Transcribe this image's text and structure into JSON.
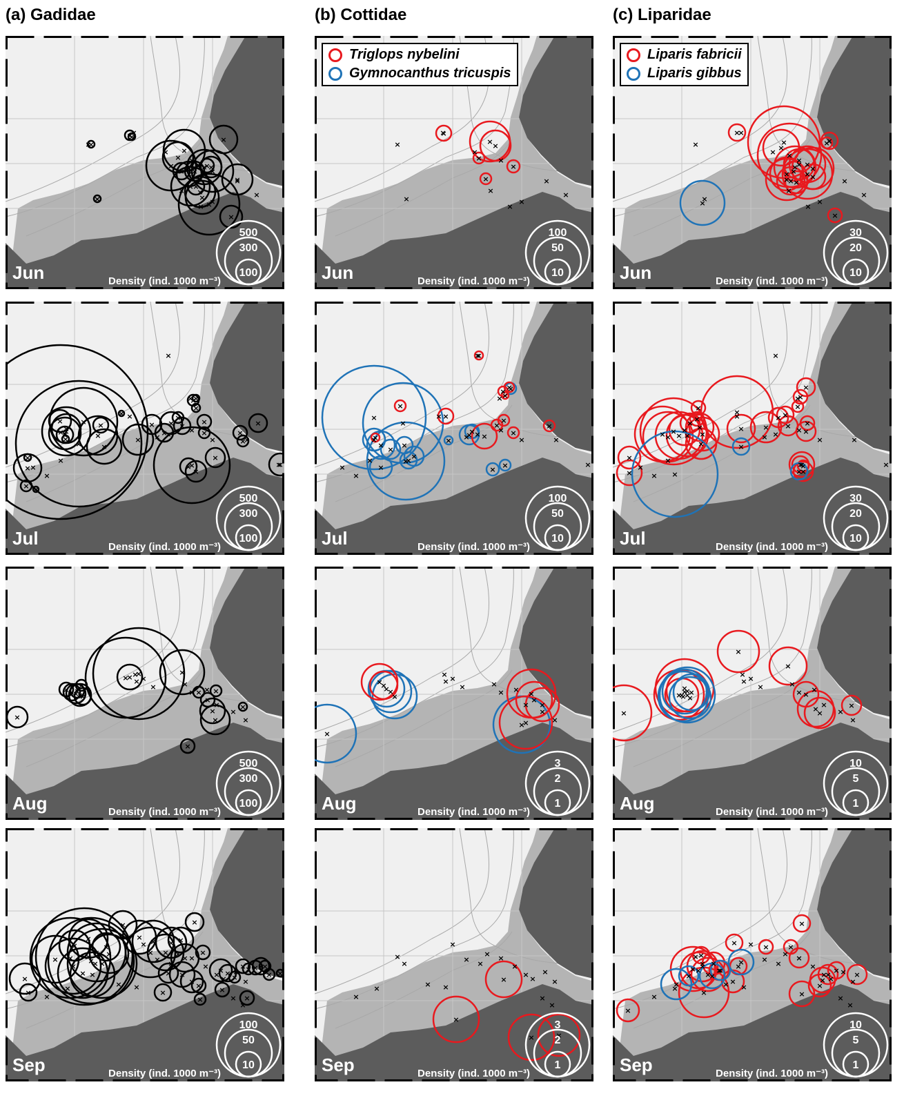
{
  "columns": [
    {
      "title": "(a) Gadidae"
    },
    {
      "title": "(b) Cottidae"
    },
    {
      "title": "(c) Liparidae"
    }
  ],
  "months": [
    "Jun",
    "Jul",
    "Aug",
    "Sep"
  ],
  "density_label": "Density (ind. 1000 m⁻³)",
  "legend_b": [
    {
      "name": "Triglops nybelini",
      "color": "#e8191e"
    },
    {
      "name": "Gymnocanthus tricuspis",
      "color": "#1f73b7"
    }
  ],
  "legend_c": [
    {
      "name": "Liparis fabricii",
      "color": "#e8191e"
    },
    {
      "name": "Liparis gibbus",
      "color": "#1f73b7"
    }
  ],
  "colors": {
    "gadidae": "#000000",
    "red": "#e8191e",
    "blue": "#1f73b7",
    "land": "#5c5c5c",
    "shelf": "#b4b4b4",
    "water": "#f0f0f0"
  },
  "chart_data": {
    "type": "scatter",
    "encoding": "proportional circles (circle area scaled to density)",
    "unit": "ind. 1000 m⁻³",
    "scale_keys": {
      "gadidae": {
        "Jun": [
          500,
          300,
          100
        ],
        "Jul": [
          500,
          300,
          100
        ],
        "Aug": [
          500,
          300,
          100
        ],
        "Sep": [
          100,
          50,
          10
        ]
      },
      "cottidae": {
        "Jun": [
          100,
          50,
          10
        ],
        "Jul": [
          100,
          50,
          10
        ],
        "Aug": [
          3,
          2,
          1
        ],
        "Sep": [
          3,
          2,
          1
        ]
      },
      "liparidae": {
        "Jun": [
          30,
          20,
          10
        ],
        "Jul": [
          30,
          20,
          10
        ],
        "Aug": [
          10,
          5,
          1
        ],
        "Sep": [
          10,
          5,
          1
        ]
      }
    }
  }
}
